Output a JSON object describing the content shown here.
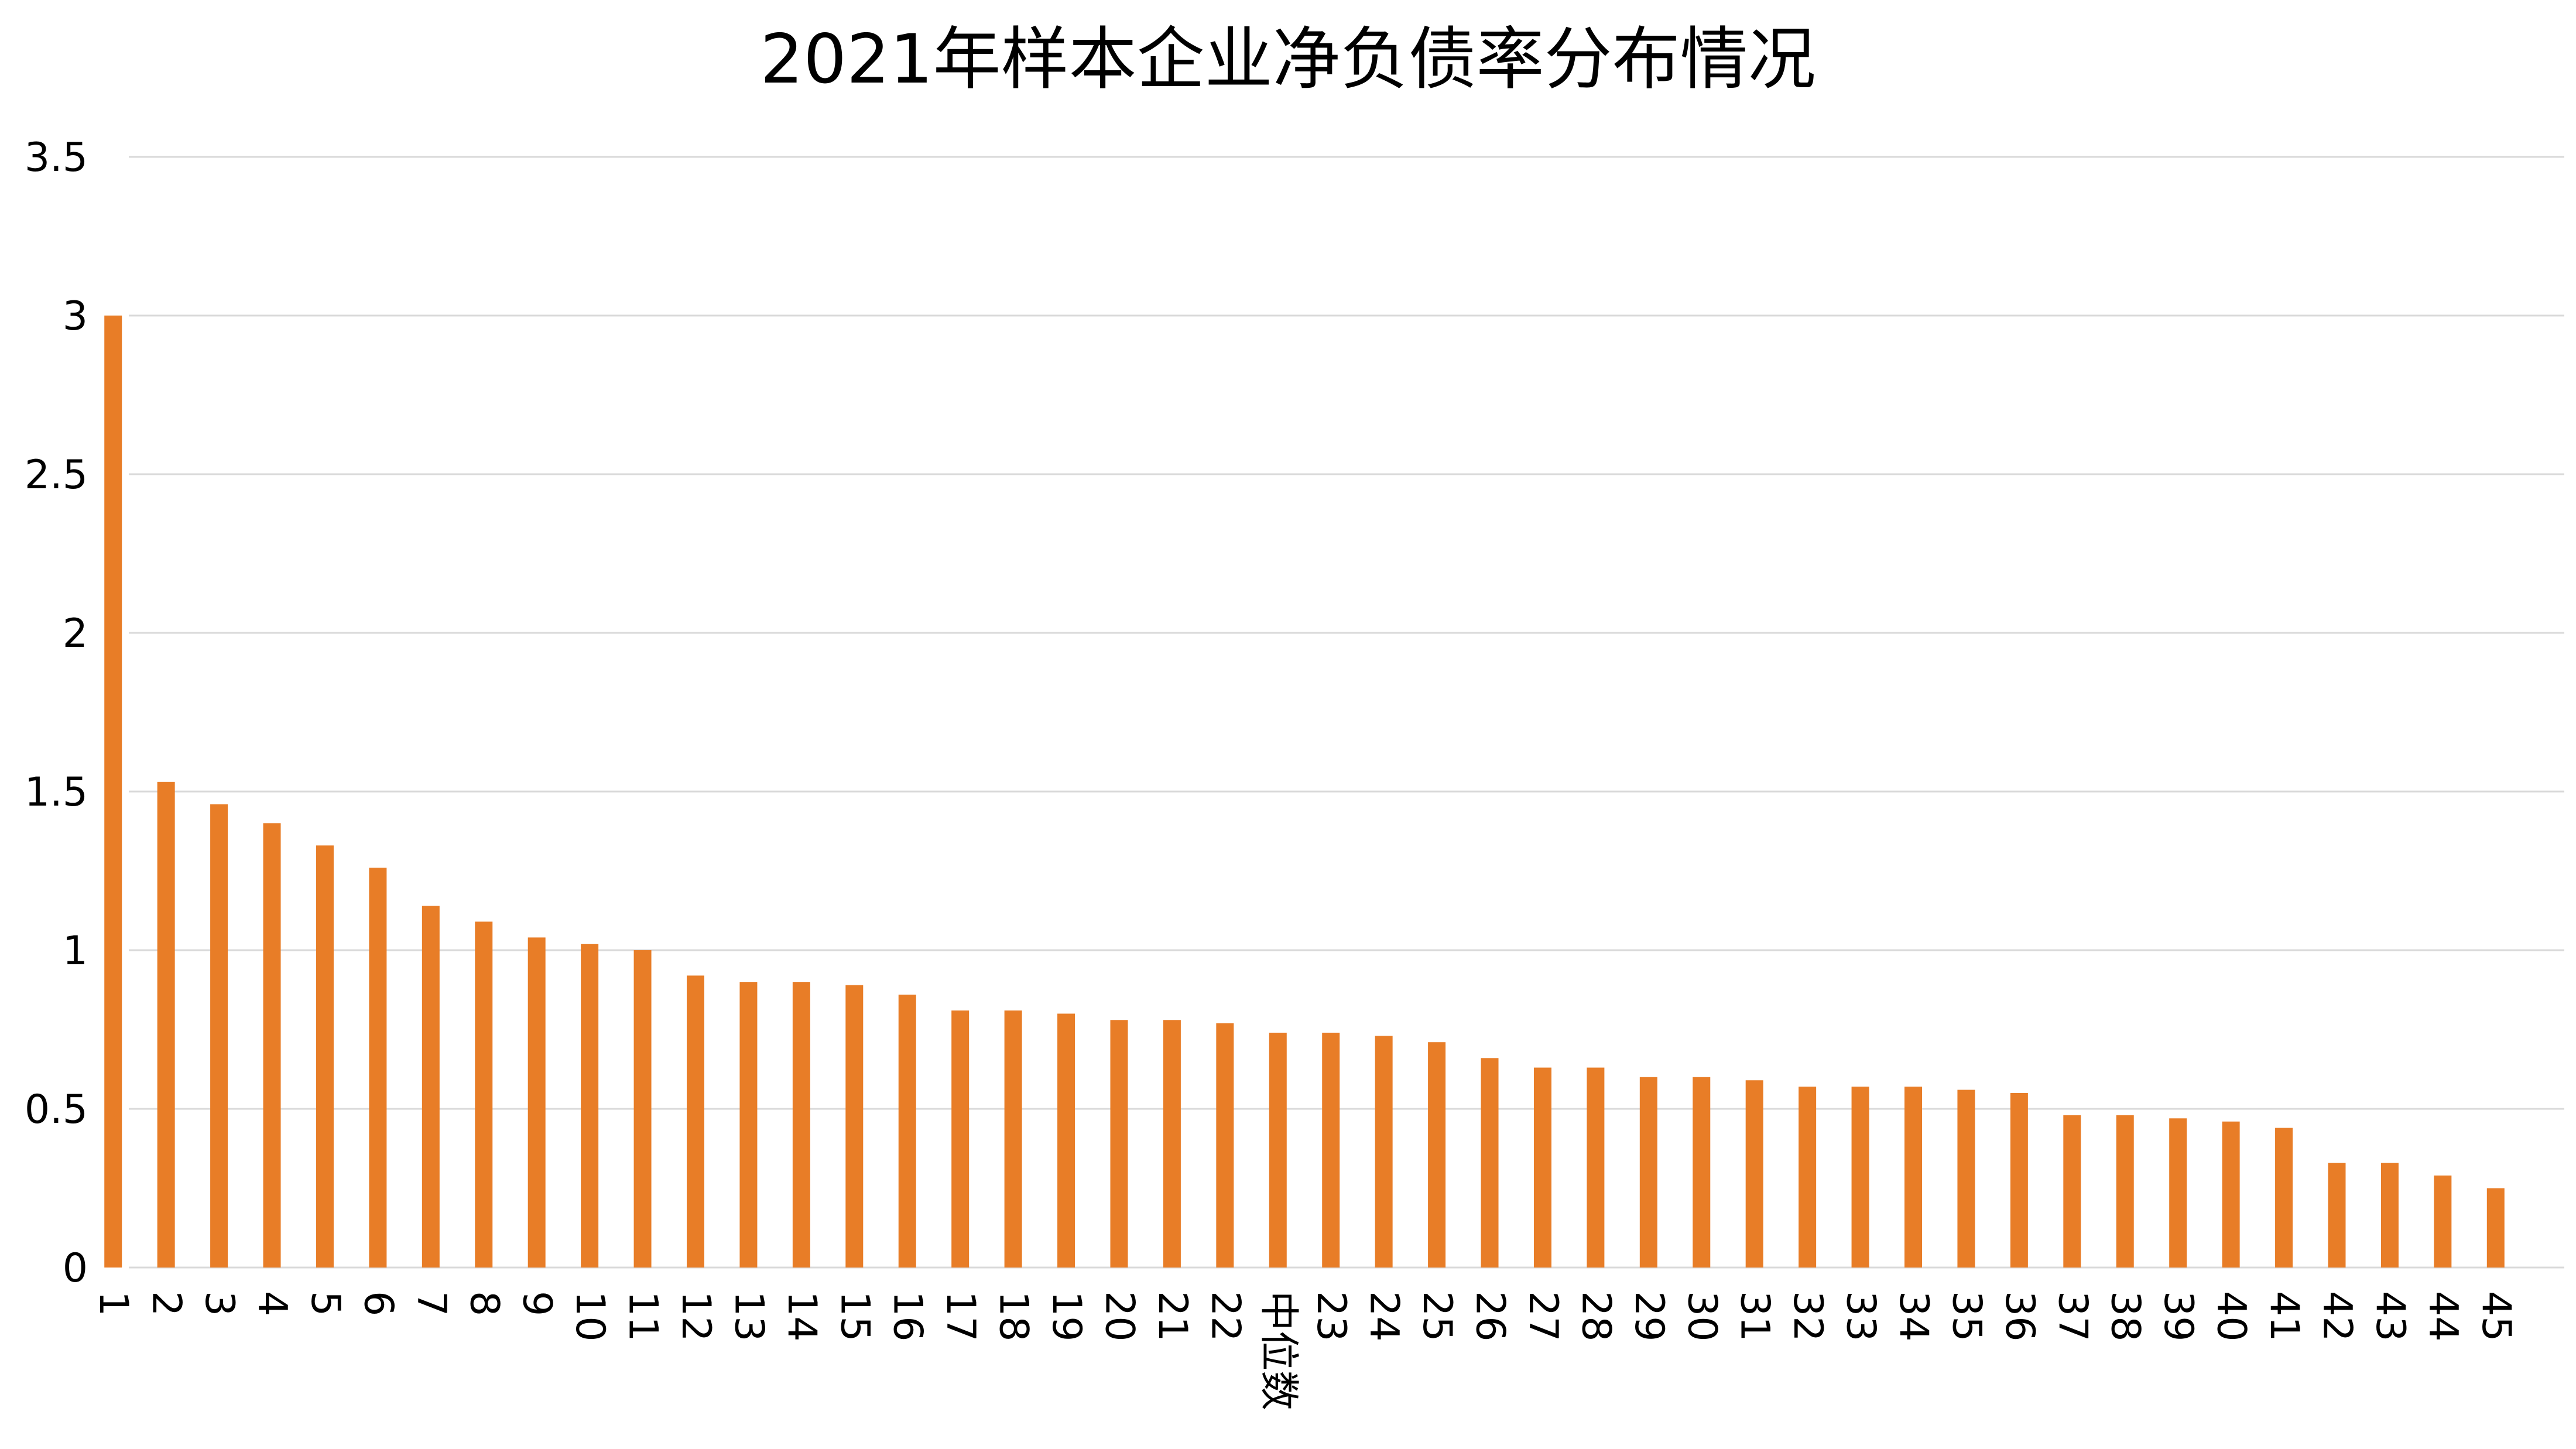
{
  "chart_data": {
    "type": "bar",
    "title": "2021年样本企业净负债率分布情况",
    "xlabel": "",
    "ylabel": "",
    "ylim": [
      0,
      3.5
    ],
    "yticks": [
      "0",
      "0.5",
      "1",
      "1.5",
      "2",
      "2.5",
      "3",
      "3.5"
    ],
    "ytick_values": [
      0,
      0.5,
      1,
      1.5,
      2,
      2.5,
      3,
      3.5
    ],
    "grid": true,
    "legend": "none",
    "bar_color": "#E87D27",
    "grid_color": "#D9D9D9",
    "categories": [
      "1",
      "2",
      "3",
      "4",
      "5",
      "6",
      "7",
      "8",
      "9",
      "10",
      "11",
      "12",
      "13",
      "14",
      "15",
      "16",
      "17",
      "18",
      "19",
      "20",
      "21",
      "22",
      "中位数",
      "23",
      "24",
      "25",
      "26",
      "27",
      "28",
      "29",
      "30",
      "31",
      "32",
      "33",
      "34",
      "35",
      "36",
      "37",
      "38",
      "39",
      "40",
      "41",
      "42",
      "43",
      "44",
      "45"
    ],
    "values": [
      3.0,
      1.53,
      1.46,
      1.4,
      1.33,
      1.26,
      1.14,
      1.09,
      1.04,
      1.02,
      1.0,
      0.92,
      0.9,
      0.9,
      0.89,
      0.86,
      0.81,
      0.81,
      0.8,
      0.78,
      0.78,
      0.77,
      0.74,
      0.74,
      0.73,
      0.71,
      0.66,
      0.63,
      0.63,
      0.6,
      0.6,
      0.59,
      0.57,
      0.57,
      0.57,
      0.56,
      0.55,
      0.48,
      0.48,
      0.47,
      0.46,
      0.44,
      0.33,
      0.33,
      0.29,
      0.25
    ]
  }
}
